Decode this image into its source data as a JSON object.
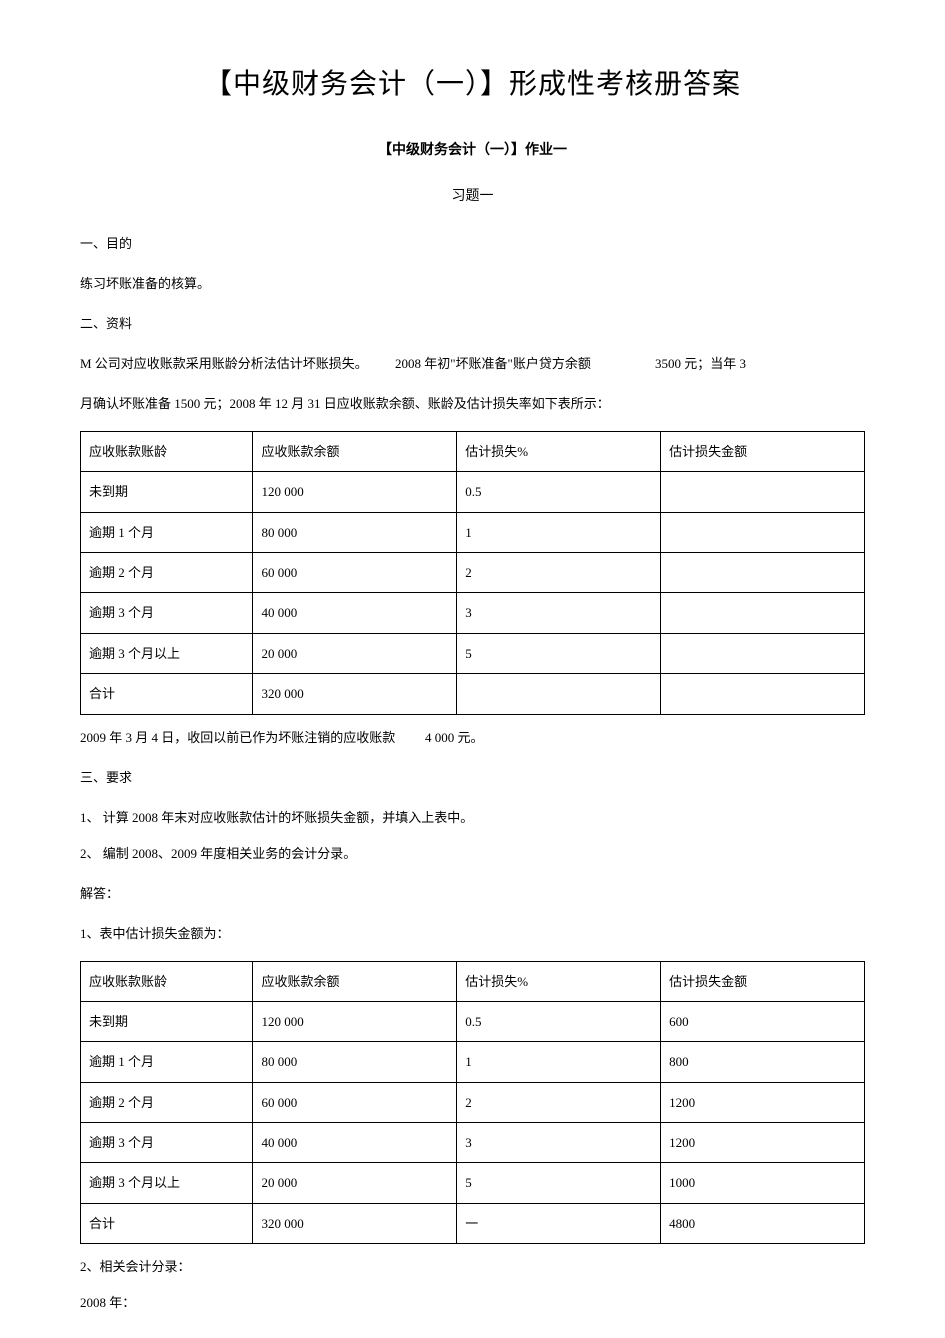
{
  "doc_title": "【中级财务会计（一）】形成性考核册答案",
  "assignment_title": "【中级财务会计（一）】作业一",
  "exercise_label": "习题一",
  "section_1": "一、目的",
  "section_1_body": "练习坏账准备的核算。",
  "section_2": "二、资料",
  "material_seg1": "M 公司对应收账款采用账龄分析法估计坏账损失。",
  "material_seg2": "2008 年初\"坏账准备\"账户贷方余额",
  "material_seg3": "3500 元；当年 3",
  "material_line2": "月确认坏账准备 1500 元；2008 年 12 月 31 日应收账款余额、账龄及估计损失率如下表所示：",
  "table1": {
    "columns": [
      "应收账款账龄",
      "应收账款余额",
      "估计损失%",
      "估计损失金额"
    ],
    "rows": [
      [
        "未到期",
        "120 000",
        "0.5",
        ""
      ],
      [
        "逾期 1 个月",
        "80 000",
        "1",
        ""
      ],
      [
        "逾期 2 个月",
        "60 000",
        "2",
        ""
      ],
      [
        "逾期 3 个月",
        "40 000",
        "3",
        ""
      ],
      [
        "逾期 3 个月以上",
        "20 000",
        "5",
        ""
      ],
      [
        "合计",
        "320 000",
        "",
        ""
      ]
    ]
  },
  "after_table1_seg1": "2009 年 3 月 4 日，收回以前已作为坏账注销的应收账款",
  "after_table1_seg2": "4 000 元。",
  "section_3": "三、要求",
  "req_1": "1、 计算 2008 年末对应收账款估计的坏账损失金额，并填入上表中。",
  "req_2": "2、 编制 2008、2009 年度相关业务的会计分录。",
  "answer_label": "解答：",
  "answer_1_title": "1、表中估计损失金额为：",
  "table2": {
    "columns": [
      "应收账款账龄",
      "应收账款余额",
      "估计损失%",
      "估计损失金额"
    ],
    "rows": [
      [
        "未到期",
        "120 000",
        "0.5",
        "600"
      ],
      [
        "逾期 1 个月",
        "80 000",
        "1",
        "800"
      ],
      [
        "逾期 2 个月",
        "60 000",
        "2",
        "1200"
      ],
      [
        "逾期 3 个月",
        "40 000",
        "3",
        "1200"
      ],
      [
        "逾期 3 个月以上",
        "20 000",
        "5",
        "1000"
      ],
      [
        "合计",
        "320 000",
        "一",
        "4800"
      ]
    ]
  },
  "answer_2_title": " 2、相关会计分录：",
  "year_2008": "2008 年："
}
